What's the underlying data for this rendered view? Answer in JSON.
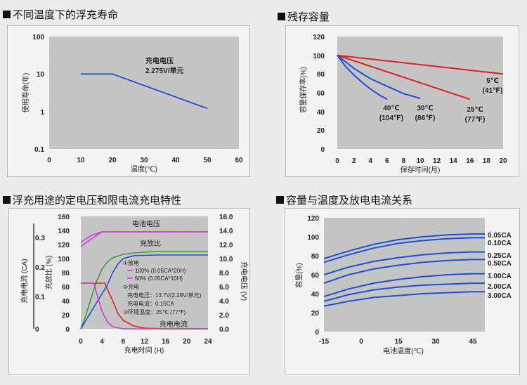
{
  "panels": {
    "p1": {
      "title": "不同温度下的浮充寿命"
    },
    "p2": {
      "title": "残存容量"
    },
    "p3": {
      "title": "浮充用途的定电压和限电流充电特性"
    },
    "p4": {
      "title": "容量与温度及放电电流关系"
    }
  },
  "chart_data": [
    {
      "type": "line",
      "title": "不同温度下的浮充寿命",
      "xlabel": "温度(℃)",
      "ylabel": "使用寿命(年)",
      "xlim": [
        0,
        60
      ],
      "ylim": [
        0.1,
        100
      ],
      "yscale": "log",
      "x_ticks": [
        "0",
        "10",
        "20",
        "30",
        "40",
        "50",
        "60"
      ],
      "y_ticks": [
        "100",
        "10",
        "1",
        "0.1"
      ],
      "series": [
        {
          "color": "#1f4fd8",
          "x": [
            10,
            20,
            50
          ],
          "y": [
            10,
            10,
            1.2
          ]
        }
      ],
      "annotation": [
        "充电电压",
        "2.275V/单元"
      ]
    },
    {
      "type": "line",
      "title": "残存容量",
      "xlabel": "保存时间(月)",
      "ylabel": "容量保存率(%)",
      "xlim": [
        0,
        20
      ],
      "ylim": [
        0,
        120
      ],
      "x_ticks": [
        "0",
        "2",
        "4",
        "6",
        "8",
        "10",
        "12",
        "14",
        "16",
        "18",
        "20"
      ],
      "y_ticks": [
        "0",
        "20",
        "40",
        "60",
        "80",
        "100",
        "120"
      ],
      "series": [
        {
          "label": [
            "5℃",
            "(41℉)"
          ],
          "color": "#e02020",
          "x": [
            0,
            20
          ],
          "y": [
            100,
            80
          ]
        },
        {
          "label": [
            "25℃",
            "(77℉)"
          ],
          "color": "#e02020",
          "x": [
            0,
            16
          ],
          "y": [
            100,
            53
          ]
        },
        {
          "label": [
            "30℃",
            "(86℉)"
          ],
          "color": "#1f4fd8",
          "x": [
            0,
            2,
            4,
            6,
            8,
            10
          ],
          "y": [
            100,
            86,
            75,
            67,
            59,
            54
          ]
        },
        {
          "label": [
            "40℃",
            "(104℉)"
          ],
          "color": "#1f4fd8",
          "x": [
            0,
            1,
            2,
            3,
            4,
            5,
            6
          ],
          "y": [
            100,
            88,
            79,
            71,
            64,
            58,
            53
          ]
        }
      ]
    },
    {
      "type": "line",
      "title": "浮充用途的定电压和限电流充电特性",
      "xlabel": "充电时间 (H)",
      "xlim": [
        0,
        24
      ],
      "x_ticks": [
        "0",
        "4",
        "8",
        "12",
        "16",
        "20",
        "24"
      ],
      "left_axis_1": {
        "label": "充电电流 (CA)",
        "ticks": [
          "0.3",
          "0.2",
          "0.1",
          "0"
        ]
      },
      "left_axis_2": {
        "label": "充放比 (%)",
        "ylim": [
          0,
          160
        ],
        "ticks": [
          "160",
          "140",
          "120",
          "100",
          "80",
          "60",
          "40",
          "20",
          "0"
        ]
      },
      "right_axis": {
        "label": "充电电压 (V)",
        "ylim": [
          0,
          16
        ],
        "ticks": [
          "16.0",
          "14.0",
          "12.0",
          "10.0",
          "8.0",
          "6.0",
          "4.0",
          "2.0",
          "0.0"
        ]
      },
      "curve_labels": [
        "电池电压",
        "充放比",
        "充电电流"
      ],
      "legend": {
        "discharge": "①放电",
        "d100": "100% (0.05CA*20H)",
        "d50": "50% (0.05CA*10H)",
        "charge": "②充电",
        "cv": "充电电压：13.7V(2.28V/单元)",
        "cc": "充电电流：0.15CA",
        "temp": "③环境温度：25℃ (77℉)"
      },
      "series": [
        {
          "name": "100% (0.05CA*20H)",
          "color": "#d63ad6",
          "part": "电池电压",
          "x": [
            0,
            2,
            4,
            6,
            24
          ],
          "y": [
            123,
            133,
            138,
            138,
            138
          ]
        },
        {
          "name": "50% (0.05CA*10H)",
          "color": "#d63ad6",
          "part": "电池电压",
          "x": [
            0,
            2,
            4,
            24
          ],
          "y": [
            117,
            128,
            138,
            138
          ]
        },
        {
          "name": "100% (0.05CA*20H)",
          "color": "#3a9e3a",
          "part": "充放比",
          "x": [
            0,
            1,
            2,
            3,
            4,
            5,
            6,
            8,
            10,
            14,
            24
          ],
          "y": [
            0,
            20,
            45,
            68,
            85,
            95,
            101,
            106,
            108,
            110,
            110
          ]
        },
        {
          "name": "50% (0.05CA*10H)",
          "color": "#1f4fd8",
          "part": "充放比",
          "x": [
            0,
            2,
            4,
            5,
            6,
            7,
            8,
            10,
            14,
            24
          ],
          "y": [
            0,
            25,
            50,
            62,
            80,
            92,
            100,
            104,
            105,
            105
          ]
        },
        {
          "name": "100% (0.05CA*20H)",
          "color": "#e02020",
          "part": "充电电流",
          "x": [
            0,
            3,
            4.5,
            6,
            7,
            8,
            10,
            12,
            16,
            24
          ],
          "y": [
            65,
            65,
            65,
            40,
            22,
            12,
            4,
            1,
            0,
            0
          ]
        },
        {
          "name": "50% (0.05CA*10H)",
          "color": "#d63ad6",
          "part": "充电电流",
          "x": [
            0,
            2.5,
            3,
            4,
            5,
            6,
            8,
            24
          ],
          "y": [
            65,
            65,
            50,
            25,
            10,
            3,
            0,
            0
          ]
        }
      ]
    },
    {
      "type": "line",
      "title": "容量与温度及放电电流关系",
      "xlabel": "电池温度(℃)",
      "ylabel": "容量(%)",
      "xlim": [
        -15,
        50
      ],
      "ylim": [
        0,
        120
      ],
      "x_ticks": [
        "-15",
        "0",
        "15",
        "30",
        "45"
      ],
      "y_ticks": [
        "0",
        "20",
        "40",
        "60",
        "80",
        "100",
        "120"
      ],
      "series": [
        {
          "name": "0.05CA",
          "color": "#1f4fd8",
          "x": [
            -15,
            -5,
            5,
            15,
            25,
            35,
            45,
            50
          ],
          "y": [
            77,
            85,
            92,
            97,
            100,
            102,
            103,
            103
          ]
        },
        {
          "name": "0.10CA",
          "color": "#1f4fd8",
          "x": [
            -15,
            -5,
            5,
            15,
            25,
            35,
            45,
            50
          ],
          "y": [
            73,
            81,
            88,
            93,
            96,
            98,
            99,
            99
          ]
        },
        {
          "name": "0.25CA",
          "color": "#1f4fd8",
          "x": [
            -15,
            -5,
            5,
            15,
            25,
            35,
            45,
            50
          ],
          "y": [
            60,
            68,
            74,
            78,
            81,
            83,
            84,
            84
          ]
        },
        {
          "name": "0.50CA",
          "color": "#1f4fd8",
          "x": [
            -15,
            -5,
            5,
            15,
            25,
            35,
            45,
            50
          ],
          "y": [
            51,
            60,
            66,
            70,
            73,
            75,
            76,
            76
          ]
        },
        {
          "name": "1.00CA",
          "color": "#1f4fd8",
          "x": [
            -15,
            -5,
            5,
            15,
            25,
            35,
            45,
            50
          ],
          "y": [
            37,
            45,
            51,
            55,
            58,
            60,
            61,
            61
          ]
        },
        {
          "name": "2.00CA",
          "color": "#1f4fd8",
          "x": [
            -15,
            -5,
            5,
            15,
            25,
            35,
            45,
            50
          ],
          "y": [
            32,
            39,
            44,
            47,
            49,
            50,
            51,
            51
          ]
        },
        {
          "name": "3.00CA",
          "color": "#1f4fd8",
          "x": [
            -15,
            -5,
            5,
            15,
            25,
            35,
            45,
            50
          ],
          "y": [
            27,
            32,
            36,
            38,
            40,
            41,
            42,
            42
          ]
        }
      ]
    }
  ]
}
